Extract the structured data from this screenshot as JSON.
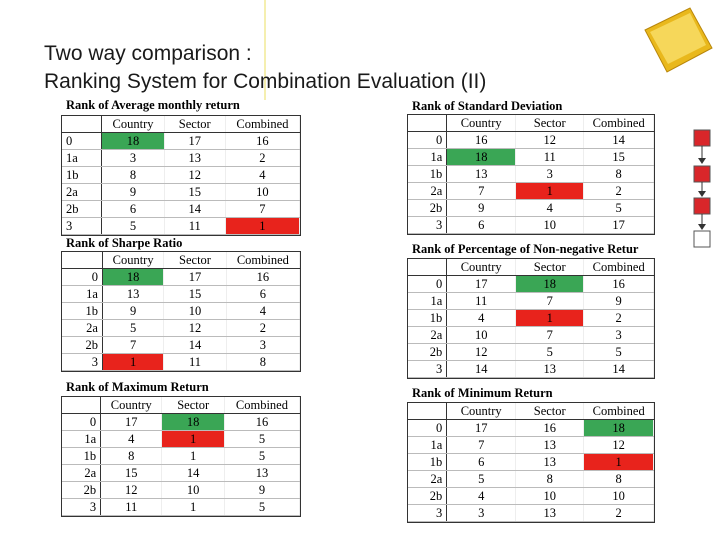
{
  "header": {
    "title_lines": [
      "Two way comparison :",
      "Ranking System for Combination Evaluation (II)"
    ]
  },
  "tables": [
    {
      "title": "Rank of Average monthly return",
      "columns": [
        "Country",
        "Sector",
        "Combined"
      ],
      "rows": [
        {
          "label": "0",
          "cells": [
            "18",
            "17",
            "16"
          ],
          "colors": [
            "#3aa655",
            null,
            null
          ]
        },
        {
          "label": "1a",
          "cells": [
            "3",
            "13",
            "2"
          ],
          "colors": [
            null,
            null,
            null
          ]
        },
        {
          "label": "1b",
          "cells": [
            "8",
            "12",
            "4"
          ],
          "colors": [
            null,
            null,
            null
          ]
        },
        {
          "label": "2a",
          "cells": [
            "9",
            "15",
            "10"
          ],
          "colors": [
            null,
            null,
            null
          ]
        },
        {
          "label": "2b",
          "cells": [
            "6",
            "14",
            "7"
          ],
          "colors": [
            null,
            null,
            null
          ]
        },
        {
          "label": "3",
          "cells": [
            "5",
            "11",
            "1"
          ],
          "colors": [
            null,
            null,
            "#e8231c"
          ]
        }
      ]
    },
    {
      "title": "Rank of Sharpe Ratio",
      "columns": [
        "Country",
        "Sector",
        "Combined"
      ],
      "rows": [
        {
          "label": "0",
          "cells": [
            "18",
            "17",
            "16"
          ],
          "colors": [
            "#3aa655",
            null,
            null
          ]
        },
        {
          "label": "1a",
          "cells": [
            "13",
            "15",
            "6"
          ],
          "colors": [
            null,
            null,
            null
          ]
        },
        {
          "label": "1b",
          "cells": [
            "9",
            "10",
            "4"
          ],
          "colors": [
            null,
            null,
            null
          ]
        },
        {
          "label": "2a",
          "cells": [
            "5",
            "12",
            "2"
          ],
          "colors": [
            null,
            null,
            null
          ]
        },
        {
          "label": "2b",
          "cells": [
            "7",
            "14",
            "3"
          ],
          "colors": [
            null,
            null,
            null
          ]
        },
        {
          "label": "3",
          "cells": [
            "1",
            "11",
            "8"
          ],
          "colors": [
            "#e8231c",
            null,
            null
          ]
        }
      ]
    },
    {
      "title": "Rank of Maximum Return",
      "columns": [
        "Country",
        "Sector",
        "Combined"
      ],
      "rows": [
        {
          "label": "0",
          "cells": [
            "17",
            "18",
            "16"
          ],
          "colors": [
            null,
            "#3aa655",
            null
          ]
        },
        {
          "label": "1a",
          "cells": [
            "4",
            "1",
            "5"
          ],
          "colors": [
            null,
            "#e8231c",
            null
          ]
        },
        {
          "label": "1b",
          "cells": [
            "8",
            "1",
            "5"
          ],
          "colors": [
            null,
            null,
            null
          ]
        },
        {
          "label": "2a",
          "cells": [
            "15",
            "14",
            "13"
          ],
          "colors": [
            null,
            null,
            null
          ]
        },
        {
          "label": "2b",
          "cells": [
            "12",
            "10",
            "9"
          ],
          "colors": [
            null,
            null,
            null
          ]
        },
        {
          "label": "3",
          "cells": [
            "11",
            "1",
            "5"
          ],
          "colors": [
            null,
            null,
            null
          ]
        }
      ]
    },
    {
      "title": "Rank of Standard Deviation",
      "columns": [
        "Country",
        "Sector",
        "Combined"
      ],
      "rows": [
        {
          "label": "0",
          "cells": [
            "16",
            "12",
            "14"
          ],
          "colors": [
            null,
            null,
            null
          ]
        },
        {
          "label": "1a",
          "cells": [
            "18",
            "11",
            "15"
          ],
          "colors": [
            "#3aa655",
            null,
            null
          ]
        },
        {
          "label": "1b",
          "cells": [
            "13",
            "3",
            "8"
          ],
          "colors": [
            null,
            null,
            null
          ]
        },
        {
          "label": "2a",
          "cells": [
            "7",
            "1",
            "2"
          ],
          "colors": [
            null,
            "#e8231c",
            null
          ]
        },
        {
          "label": "2b",
          "cells": [
            "9",
            "4",
            "5"
          ],
          "colors": [
            null,
            null,
            null
          ]
        },
        {
          "label": "3",
          "cells": [
            "6",
            "10",
            "17"
          ],
          "colors": [
            null,
            null,
            null
          ]
        }
      ]
    },
    {
      "title": "Rank of Percentage of Non-negative Retur",
      "columns": [
        "Country",
        "Sector",
        "Combined"
      ],
      "rows": [
        {
          "label": "0",
          "cells": [
            "17",
            "18",
            "16"
          ],
          "colors": [
            null,
            "#3aa655",
            null
          ]
        },
        {
          "label": "1a",
          "cells": [
            "11",
            "7",
            "9"
          ],
          "colors": [
            null,
            null,
            null
          ]
        },
        {
          "label": "1b",
          "cells": [
            "4",
            "1",
            "2"
          ],
          "colors": [
            null,
            "#e8231c",
            null
          ]
        },
        {
          "label": "2a",
          "cells": [
            "10",
            "7",
            "3"
          ],
          "colors": [
            null,
            null,
            null
          ]
        },
        {
          "label": "2b",
          "cells": [
            "12",
            "5",
            "5"
          ],
          "colors": [
            null,
            null,
            null
          ]
        },
        {
          "label": "3",
          "cells": [
            "14",
            "13",
            "14"
          ],
          "colors": [
            null,
            null,
            null
          ]
        }
      ]
    },
    {
      "title": "Rank of Minimum Return",
      "columns": [
        "Country",
        "Sector",
        "Combined"
      ],
      "rows": [
        {
          "label": "0",
          "cells": [
            "17",
            "16",
            "18"
          ],
          "colors": [
            null,
            null,
            "#3aa655"
          ]
        },
        {
          "label": "1a",
          "cells": [
            "7",
            "13",
            "12"
          ],
          "colors": [
            null,
            null,
            null
          ]
        },
        {
          "label": "1b",
          "cells": [
            "6",
            "13",
            "1"
          ],
          "colors": [
            null,
            null,
            "#e8231c"
          ]
        },
        {
          "label": "2a",
          "cells": [
            "5",
            "8",
            "8"
          ],
          "colors": [
            null,
            null,
            null
          ]
        },
        {
          "label": "2b",
          "cells": [
            "4",
            "10",
            "10"
          ],
          "colors": [
            null,
            null,
            null
          ]
        },
        {
          "label": "3",
          "cells": [
            "3",
            "13",
            "2"
          ],
          "colors": [
            null,
            null,
            null
          ]
        }
      ]
    }
  ]
}
